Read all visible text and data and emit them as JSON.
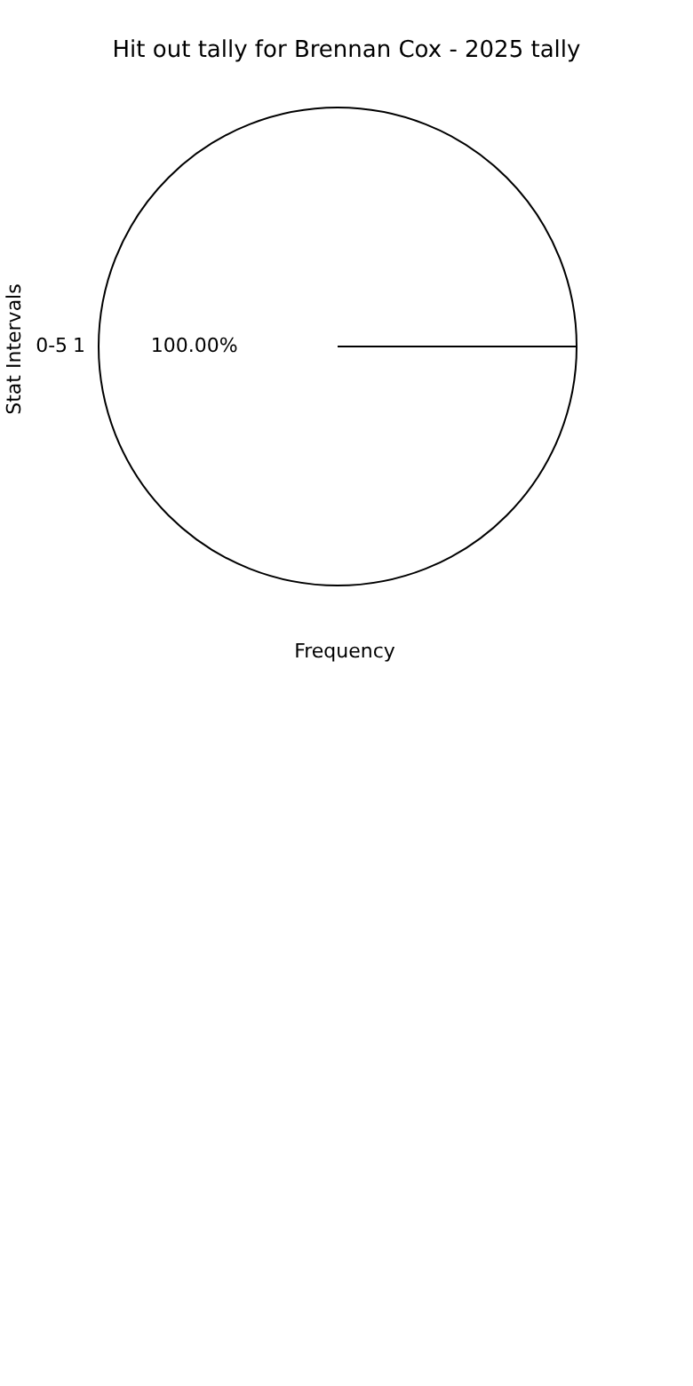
{
  "chart_data": {
    "type": "pie",
    "title": "Hit out tally for Brennan Cox - 2025 tally",
    "xlabel": "Frequency",
    "ylabel": "Stat Intervals",
    "categories": [
      "0-5"
    ],
    "values": [
      100
    ],
    "colors": [
      "#ffffff"
    ],
    "value_labels": [
      "100.00%"
    ],
    "annotations": [
      "1"
    ],
    "legend": false
  }
}
